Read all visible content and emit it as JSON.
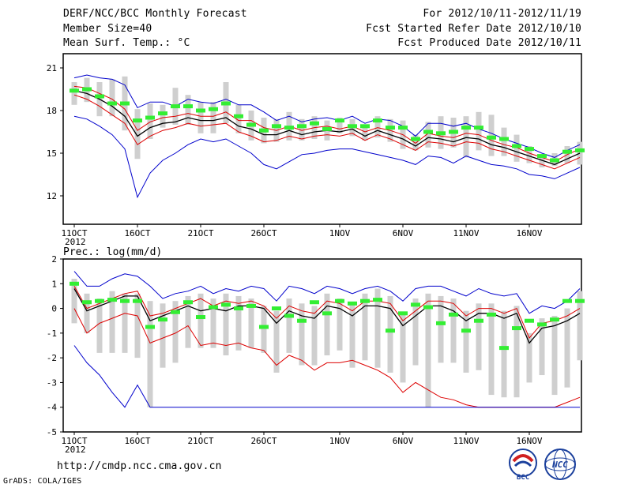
{
  "header": {
    "title": "DERF/NCC/BCC Monthly Forecast",
    "member_size": "Member Size=40",
    "variable1": "Mean Surf. Temp.: °C",
    "period": "For 2012/10/11-2012/11/19",
    "refer_date": "Fcst Started Refer Date 2012/10/10",
    "produced_date": "Fcst Produced Date 2012/10/11"
  },
  "footer": {
    "url": "http://cmdp.ncc.cma.gov.cn",
    "credit": "GrADS: COLA/IGES",
    "logo_bcc": "BCC",
    "logo_ncc": "NCC"
  },
  "colors": {
    "envelope": "#0000cc",
    "percentile": "#dd0000",
    "mean": "#000000",
    "box": "#cfcfcf",
    "obs": "#33ee33"
  },
  "chart_data": [
    {
      "type": "line",
      "title": "Mean Surf. Temp.: °C",
      "ylim": [
        10,
        22
      ],
      "yticks": [
        12,
        15,
        18,
        21
      ],
      "xlim": [
        0,
        40
      ],
      "x_ticks": [
        {
          "day": 0,
          "label": "11OCT",
          "sub": "2012"
        },
        {
          "day": 5,
          "label": "16OCT"
        },
        {
          "day": 10,
          "label": "21OCT"
        },
        {
          "day": 15,
          "label": "26OCT"
        },
        {
          "day": 21,
          "label": "1NOV"
        },
        {
          "day": 26,
          "label": "6NOV"
        },
        {
          "day": 31,
          "label": "11NOV"
        },
        {
          "day": 36,
          "label": "16NOV"
        }
      ],
      "series": [
        {
          "name": "max",
          "color": "envelope",
          "values": [
            20.3,
            20.5,
            20.3,
            20.2,
            19.8,
            18.2,
            18.6,
            18.6,
            18.3,
            18.8,
            18.6,
            18.5,
            18.8,
            18.4,
            18.4,
            17.9,
            17.3,
            17.6,
            17.2,
            17.4,
            17.5,
            17.3,
            17.6,
            17.1,
            17.4,
            17.3,
            16.9,
            16.2,
            17.1,
            17.1,
            16.9,
            17.1,
            16.7,
            16.4,
            16.0,
            15.7,
            15.4,
            15.0,
            14.7,
            15.2,
            15.6
          ]
        },
        {
          "name": "p_high",
          "color": "percentile",
          "values": [
            19.7,
            19.6,
            19.2,
            18.8,
            18.1,
            16.6,
            17.2,
            17.5,
            17.6,
            17.8,
            17.6,
            17.6,
            17.9,
            17.3,
            17.3,
            16.8,
            16.6,
            16.9,
            16.6,
            16.8,
            16.9,
            16.7,
            16.9,
            16.5,
            16.8,
            16.6,
            16.3,
            15.7,
            16.4,
            16.2,
            16.1,
            16.4,
            16.3,
            15.9,
            15.6,
            15.4,
            15.0,
            14.7,
            14.4,
            14.9,
            15.3
          ]
        },
        {
          "name": "mean",
          "color": "mean",
          "values": [
            19.4,
            19.2,
            18.8,
            18.3,
            17.6,
            16.2,
            16.8,
            17.1,
            17.2,
            17.5,
            17.3,
            17.3,
            17.5,
            16.9,
            16.7,
            16.3,
            16.3,
            16.6,
            16.3,
            16.5,
            16.6,
            16.5,
            16.7,
            16.2,
            16.6,
            16.3,
            16.0,
            15.5,
            16.1,
            16.0,
            15.8,
            16.1,
            16.0,
            15.6,
            15.4,
            15.1,
            14.8,
            14.5,
            14.2,
            14.6,
            15.0
          ]
        },
        {
          "name": "p_low",
          "color": "percentile",
          "values": [
            19.1,
            18.8,
            18.3,
            17.7,
            17.1,
            15.6,
            16.2,
            16.6,
            16.8,
            17.1,
            16.9,
            17.0,
            17.1,
            16.5,
            16.2,
            15.8,
            15.9,
            16.2,
            16.0,
            16.2,
            16.3,
            16.2,
            16.4,
            15.9,
            16.3,
            16.0,
            15.6,
            15.2,
            15.8,
            15.7,
            15.5,
            15.8,
            15.7,
            15.3,
            15.1,
            14.8,
            14.5,
            14.2,
            13.9,
            14.3,
            14.7
          ]
        },
        {
          "name": "min",
          "color": "envelope",
          "values": [
            17.6,
            17.4,
            16.9,
            16.3,
            15.3,
            11.9,
            13.6,
            14.5,
            15.0,
            15.6,
            16.0,
            15.8,
            16.0,
            15.5,
            15.0,
            14.2,
            13.9,
            14.4,
            14.9,
            15.0,
            15.2,
            15.3,
            15.3,
            15.1,
            14.9,
            14.7,
            14.5,
            14.2,
            14.8,
            14.7,
            14.3,
            14.8,
            14.5,
            14.2,
            14.1,
            13.9,
            13.5,
            13.4,
            13.2,
            13.6,
            14.0
          ]
        }
      ],
      "boxes": [
        [
          18.4,
          20.0
        ],
        [
          18.6,
          20.3
        ],
        [
          17.6,
          20.0
        ],
        [
          17.6,
          20.2
        ],
        [
          16.6,
          20.4
        ],
        [
          14.6,
          18.1
        ],
        [
          16.0,
          18.5
        ],
        [
          16.8,
          18.4
        ],
        [
          17.0,
          19.6
        ],
        [
          17.0,
          19.1
        ],
        [
          16.4,
          18.6
        ],
        [
          16.4,
          18.6
        ],
        [
          17.1,
          20.0
        ],
        [
          16.4,
          18.4
        ],
        [
          15.9,
          18.0
        ],
        [
          15.7,
          17.5
        ],
        [
          15.8,
          17.4
        ],
        [
          15.9,
          17.9
        ],
        [
          15.9,
          17.4
        ],
        [
          16.0,
          17.6
        ],
        [
          15.9,
          17.3
        ],
        [
          16.4,
          17.5
        ],
        [
          16.2,
          17.4
        ],
        [
          15.9,
          17.0
        ],
        [
          16.1,
          17.6
        ],
        [
          15.8,
          17.4
        ],
        [
          15.3,
          17.3
        ],
        [
          15.2,
          16.3
        ],
        [
          15.4,
          17.2
        ],
        [
          15.3,
          17.6
        ],
        [
          15.4,
          17.5
        ],
        [
          14.7,
          17.6
        ],
        [
          15.2,
          17.9
        ],
        [
          14.8,
          17.7
        ],
        [
          14.8,
          16.8
        ],
        [
          14.4,
          16.3
        ],
        [
          14.3,
          15.5
        ],
        [
          14.0,
          14.9
        ],
        [
          14.1,
          15.0
        ],
        [
          14.3,
          15.5
        ],
        [
          14.2,
          15.8
        ]
      ],
      "obs": [
        19.4,
        19.5,
        19.0,
        18.5,
        18.5,
        17.3,
        17.5,
        17.8,
        18.3,
        18.3,
        18.0,
        18.1,
        18.5,
        17.6,
        17.0,
        16.6,
        16.9,
        16.8,
        16.9,
        17.1,
        16.7,
        17.3,
        16.9,
        16.9,
        17.3,
        16.8,
        16.8,
        16.0,
        16.5,
        16.4,
        16.5,
        16.8,
        16.8,
        16.1,
        16.0,
        15.5,
        15.3,
        14.8,
        14.5,
        15.1,
        15.2
      ]
    },
    {
      "type": "line",
      "title": "Prec.: log(mm/d)",
      "ylim": [
        -5,
        2
      ],
      "yticks": [
        2,
        1,
        0,
        -1,
        -2,
        -3,
        -4,
        -5
      ],
      "xlim": [
        0,
        40
      ],
      "x_ticks": [
        {
          "day": 0,
          "label": "11OCT",
          "sub": "2012"
        },
        {
          "day": 5,
          "label": "16OCT"
        },
        {
          "day": 10,
          "label": "21OCT"
        },
        {
          "day": 15,
          "label": "26OCT"
        },
        {
          "day": 21,
          "label": "1NOV"
        },
        {
          "day": 26,
          "label": "6NOV"
        },
        {
          "day": 31,
          "label": "11NOV"
        },
        {
          "day": 36,
          "label": "16NOV"
        }
      ],
      "series": [
        {
          "name": "max",
          "color": "envelope",
          "values": [
            1.5,
            0.9,
            0.9,
            1.2,
            1.4,
            1.3,
            0.9,
            0.4,
            0.6,
            0.7,
            0.9,
            0.6,
            0.8,
            0.7,
            0.9,
            0.8,
            0.3,
            0.9,
            0.8,
            0.6,
            0.9,
            0.8,
            0.6,
            0.8,
            0.9,
            0.7,
            0.3,
            0.8,
            0.9,
            0.9,
            0.7,
            0.5,
            0.8,
            0.6,
            0.5,
            0.6,
            -0.2,
            0.1,
            0.0,
            0.3,
            0.8
          ]
        },
        {
          "name": "p_high",
          "color": "percentile",
          "values": [
            0.9,
            0.0,
            0.2,
            0.4,
            0.6,
            0.7,
            -0.3,
            -0.2,
            0.0,
            0.2,
            0.4,
            0.1,
            0.3,
            0.2,
            0.3,
            0.1,
            -0.4,
            0.1,
            -0.1,
            -0.2,
            0.3,
            0.2,
            -0.1,
            0.3,
            0.3,
            0.2,
            -0.5,
            -0.1,
            0.3,
            0.3,
            0.2,
            -0.3,
            0.0,
            0.0,
            -0.2,
            0.0,
            -1.2,
            -0.6,
            -0.5,
            -0.3,
            0.0
          ]
        },
        {
          "name": "mean",
          "color": "mean",
          "values": [
            0.8,
            -0.1,
            0.1,
            0.3,
            0.5,
            0.5,
            -0.5,
            -0.3,
            -0.1,
            0.1,
            -0.1,
            0.0,
            -0.1,
            0.1,
            0.1,
            0.0,
            -0.6,
            -0.1,
            -0.3,
            -0.4,
            0.1,
            0.0,
            -0.3,
            0.1,
            0.1,
            0.0,
            -0.7,
            -0.3,
            0.1,
            0.1,
            -0.1,
            -0.5,
            -0.2,
            -0.2,
            -0.4,
            -0.2,
            -1.4,
            -0.8,
            -0.7,
            -0.5,
            -0.2
          ]
        },
        {
          "name": "p_low",
          "color": "percentile",
          "values": [
            0.0,
            -1.0,
            -0.6,
            -0.4,
            -0.2,
            -0.3,
            -1.4,
            -1.2,
            -1.0,
            -0.7,
            -1.5,
            -1.4,
            -1.5,
            -1.4,
            -1.6,
            -1.7,
            -2.3,
            -1.9,
            -2.1,
            -2.5,
            -2.2,
            -2.2,
            -2.1,
            -2.3,
            -2.5,
            -2.8,
            -3.4,
            -3.0,
            -3.3,
            -3.6,
            -3.7,
            -3.9,
            -4.0,
            -4.0,
            -4.0,
            -4.0,
            -4.0,
            -4.0,
            -4.0,
            -3.8,
            -3.6
          ]
        },
        {
          "name": "min",
          "color": "envelope",
          "values": [
            -1.5,
            -2.2,
            -2.7,
            -3.4,
            -4.0,
            -3.1,
            -4.0,
            -4.0,
            -4.0,
            -4.0,
            -4.0,
            -4.0,
            -4.0,
            -4.0,
            -4.0,
            -4.0,
            -4.0,
            -4.0,
            -4.0,
            -4.0,
            -4.0,
            -4.0,
            -4.0,
            -4.0,
            -4.0,
            -4.0,
            -4.0,
            -4.0,
            -4.0,
            -4.0,
            -4.0,
            -4.0,
            -4.0,
            -4.0,
            -4.0,
            -4.0,
            -4.0,
            -4.0,
            -4.0,
            -4.0,
            -4.0
          ]
        }
      ],
      "boxes": [
        [
          -0.6,
          1.2
        ],
        [
          -1.0,
          0.6
        ],
        [
          -1.8,
          0.4
        ],
        [
          -1.8,
          0.7
        ],
        [
          -1.8,
          0.6
        ],
        [
          -2.0,
          0.6
        ],
        [
          -4.0,
          0.3
        ],
        [
          -2.4,
          0.2
        ],
        [
          -2.2,
          0.3
        ],
        [
          -1.6,
          0.5
        ],
        [
          -1.6,
          0.6
        ],
        [
          -1.6,
          0.4
        ],
        [
          -1.9,
          0.6
        ],
        [
          -1.7,
          0.5
        ],
        [
          -1.6,
          0.4
        ],
        [
          -1.8,
          0.1
        ],
        [
          -2.6,
          -0.1
        ],
        [
          -1.8,
          0.4
        ],
        [
          -2.3,
          0.2
        ],
        [
          -2.3,
          0.1
        ],
        [
          -1.9,
          0.6
        ],
        [
          -1.7,
          0.4
        ],
        [
          -2.4,
          0.2
        ],
        [
          -2.1,
          0.6
        ],
        [
          -2.4,
          0.8
        ],
        [
          -2.6,
          0.5
        ],
        [
          -3.0,
          -0.2
        ],
        [
          -2.3,
          0.4
        ],
        [
          -4.0,
          0.6
        ],
        [
          -2.2,
          0.5
        ],
        [
          -2.2,
          0.4
        ],
        [
          -2.6,
          -0.1
        ],
        [
          -2.5,
          0.2
        ],
        [
          -3.5,
          0.2
        ],
        [
          -3.6,
          -0.1
        ],
        [
          -3.6,
          0.1
        ],
        [
          -3.0,
          -1.0
        ],
        [
          -2.7,
          -0.4
        ],
        [
          -3.5,
          -0.3
        ],
        [
          -3.2,
          0.0
        ],
        [
          -2.1,
          0.7
        ]
      ],
      "obs": [
        1.0,
        0.25,
        0.3,
        0.35,
        0.3,
        0.3,
        -0.75,
        -0.45,
        -0.15,
        0.25,
        -0.35,
        0.05,
        0.15,
        0.0,
        0.1,
        -0.75,
        0.0,
        -0.3,
        -0.5,
        0.25,
        -0.2,
        0.3,
        0.2,
        0.3,
        0.35,
        -0.9,
        -0.2,
        0.15,
        0.05,
        -0.6,
        -0.25,
        -0.9,
        -0.5,
        -0.25,
        -1.6,
        -0.8,
        -0.5,
        -0.65,
        -0.45,
        0.3,
        0.3
      ]
    }
  ]
}
